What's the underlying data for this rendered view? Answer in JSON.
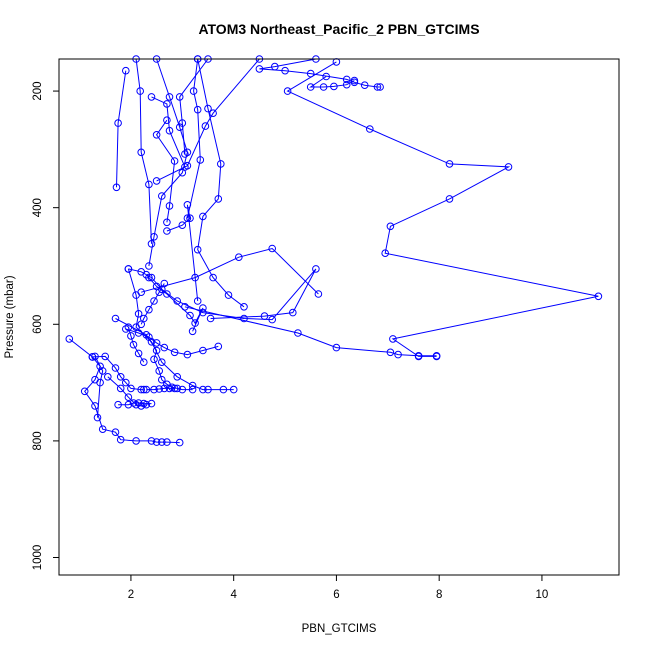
{
  "chart_data": {
    "type": "line",
    "title": "ATOM3 Northeast_Pacific_2 PBN_GTCIMS",
    "xlabel": "PBN_GTCIMS",
    "ylabel": "Pressure (mbar)",
    "xlim": [
      0.6,
      11.5
    ],
    "ylim": [
      1030,
      145
    ],
    "y_reversed": true,
    "x_ticks": [
      2,
      4,
      6,
      8,
      10
    ],
    "y_ticks": [
      200,
      400,
      600,
      800,
      1000
    ],
    "grid": false,
    "legend": "none",
    "color": "#0000ff",
    "marker": "open-circle",
    "series": [
      {
        "x": [
          1.9,
          1.75,
          1.72
        ],
        "y": [
          165,
          255,
          365
        ]
      },
      {
        "x": [
          2.1,
          2.18,
          2.2,
          2.35,
          2.4
        ],
        "y": [
          145,
          200,
          305,
          360,
          462
        ]
      },
      {
        "x": [
          2.5,
          2.75,
          2.95,
          3.1,
          3.0,
          2.6,
          2.45,
          2.35
        ],
        "y": [
          145,
          210,
          262,
          305,
          340,
          380,
          450,
          500
        ]
      },
      {
        "x": [
          3.3,
          3.22,
          3.3,
          3.35,
          3.1
        ],
        "y": [
          145,
          200,
          232,
          318,
          418
        ]
      },
      {
        "x": [
          3.5,
          2.95,
          3.0,
          3.05
        ],
        "y": [
          145,
          210,
          255,
          308
        ]
      },
      {
        "x": [
          2.4,
          2.7,
          2.75,
          3.05
        ],
        "y": [
          210,
          222,
          268,
          330
        ]
      },
      {
        "x": [
          2.7,
          2.5,
          2.85,
          2.75,
          2.7
        ],
        "y": [
          250,
          275,
          320,
          397,
          425
        ]
      },
      {
        "x": [
          3.3,
          3.5,
          3.75,
          3.7,
          3.4,
          3.3,
          3.6,
          3.9,
          4.2
        ],
        "y": [
          145,
          230,
          325,
          385,
          415,
          472,
          520,
          550,
          570
        ]
      },
      {
        "x": [
          4.5,
          3.6,
          3.45,
          3.1,
          2.5
        ],
        "y": [
          145,
          238,
          260,
          328,
          354
        ]
      },
      {
        "x": [
          5.6,
          4.8,
          4.5,
          5.0,
          5.5,
          6.2,
          6.35,
          6.55,
          6.8,
          6.85
        ],
        "y": [
          145,
          158,
          162,
          165,
          170,
          180,
          185,
          190,
          193,
          193
        ]
      },
      {
        "x": [
          6.0,
          5.05,
          6.65,
          8.2,
          9.35,
          8.2,
          7.05,
          6.95,
          11.1,
          7.1,
          7.6,
          7.95
        ],
        "y": [
          150,
          200,
          265,
          325,
          330,
          385,
          432,
          478,
          552,
          625,
          655,
          655
        ]
      },
      {
        "x": [
          5.8,
          5.5,
          5.75,
          5.95,
          6.2,
          6.35
        ],
        "y": [
          175,
          193,
          193,
          192,
          189,
          182
        ]
      },
      {
        "x": [
          1.95,
          2.1,
          2.15,
          2.1,
          2.4,
          2.6,
          2.9,
          3.2,
          3.4,
          3.5,
          3.8,
          4.0
        ],
        "y": [
          505,
          550,
          582,
          605,
          630,
          665,
          690,
          705,
          712,
          712,
          712,
          712
        ]
      },
      {
        "x": [
          1.7,
          2.3,
          2.5,
          2.45,
          2.55,
          2.6,
          2.7,
          2.8,
          2.9,
          3.0,
          3.2
        ],
        "y": [
          590,
          618,
          645,
          660,
          680,
          695,
          703,
          708,
          710,
          712,
          712
        ]
      },
      {
        "x": [
          1.95,
          2.2,
          2.4,
          2.6,
          2.9,
          3.4,
          4.2,
          4.75,
          5.6,
          5.15,
          4.6,
          3.55
        ],
        "y": [
          505,
          510,
          520,
          540,
          560,
          580,
          590,
          592,
          505,
          580,
          586,
          590
        ]
      },
      {
        "x": [
          2.2,
          3.25,
          4.1,
          4.75,
          5.65
        ],
        "y": [
          545,
          520,
          485,
          470,
          548
        ]
      },
      {
        "x": [
          1.9,
          2.15,
          2.35,
          2.5,
          2.65,
          2.85,
          3.1,
          3.4,
          3.7
        ],
        "y": [
          608,
          615,
          622,
          632,
          640,
          648,
          652,
          645,
          638
        ]
      },
      {
        "x": [
          2.3,
          2.35,
          2.5,
          2.7,
          3.15,
          3.25,
          3.4,
          3.2
        ],
        "y": [
          515,
          520,
          535,
          548,
          585,
          598,
          572,
          612
        ]
      },
      {
        "x": [
          3.05,
          5.25,
          6.0,
          7.05,
          7.2,
          7.6,
          7.95
        ],
        "y": [
          570,
          615,
          640,
          648,
          652,
          654,
          654
        ]
      },
      {
        "x": [
          2.7,
          3.0,
          3.15,
          3.1,
          3.3
        ],
        "y": [
          440,
          430,
          418,
          395,
          560
        ]
      },
      {
        "x": [
          0.8,
          1.25,
          1.4,
          1.3,
          1.1,
          1.3,
          1.45,
          1.7,
          1.8,
          2.1,
          2.4,
          2.5,
          2.6,
          2.7,
          2.95
        ],
        "y": [
          625,
          656,
          672,
          695,
          715,
          740,
          780,
          785,
          798,
          800,
          800,
          802,
          802,
          802,
          803
        ]
      },
      {
        "x": [
          1.25,
          1.5,
          1.7,
          1.8,
          1.9,
          2.0,
          2.2,
          2.25
        ],
        "y": [
          656,
          655,
          675,
          690,
          700,
          710,
          712,
          712
        ]
      },
      {
        "x": [
          1.55,
          1.8,
          1.95,
          2.1,
          2.2,
          2.3
        ],
        "y": [
          690,
          710,
          725,
          738,
          740,
          738
        ]
      },
      {
        "x": [
          1.75,
          1.95,
          2.05,
          2.15,
          2.25,
          2.4
        ],
        "y": [
          738,
          738,
          735,
          735,
          736,
          736
        ]
      },
      {
        "x": [
          1.3,
          1.45,
          1.4,
          1.35
        ],
        "y": [
          655,
          680,
          700,
          760
        ]
      },
      {
        "x": [
          2.3,
          2.45,
          2.55,
          2.65,
          2.75,
          2.85
        ],
        "y": [
          712,
          712,
          711,
          710,
          710,
          710
        ]
      },
      {
        "x": [
          2.2,
          2.25,
          2.35,
          2.45,
          2.55,
          2.65
        ],
        "y": [
          600,
          590,
          575,
          560,
          545,
          530
        ]
      },
      {
        "x": [
          1.95,
          2.0,
          2.05,
          2.15,
          2.25
        ],
        "y": [
          605,
          620,
          635,
          650,
          665
        ]
      }
    ]
  }
}
